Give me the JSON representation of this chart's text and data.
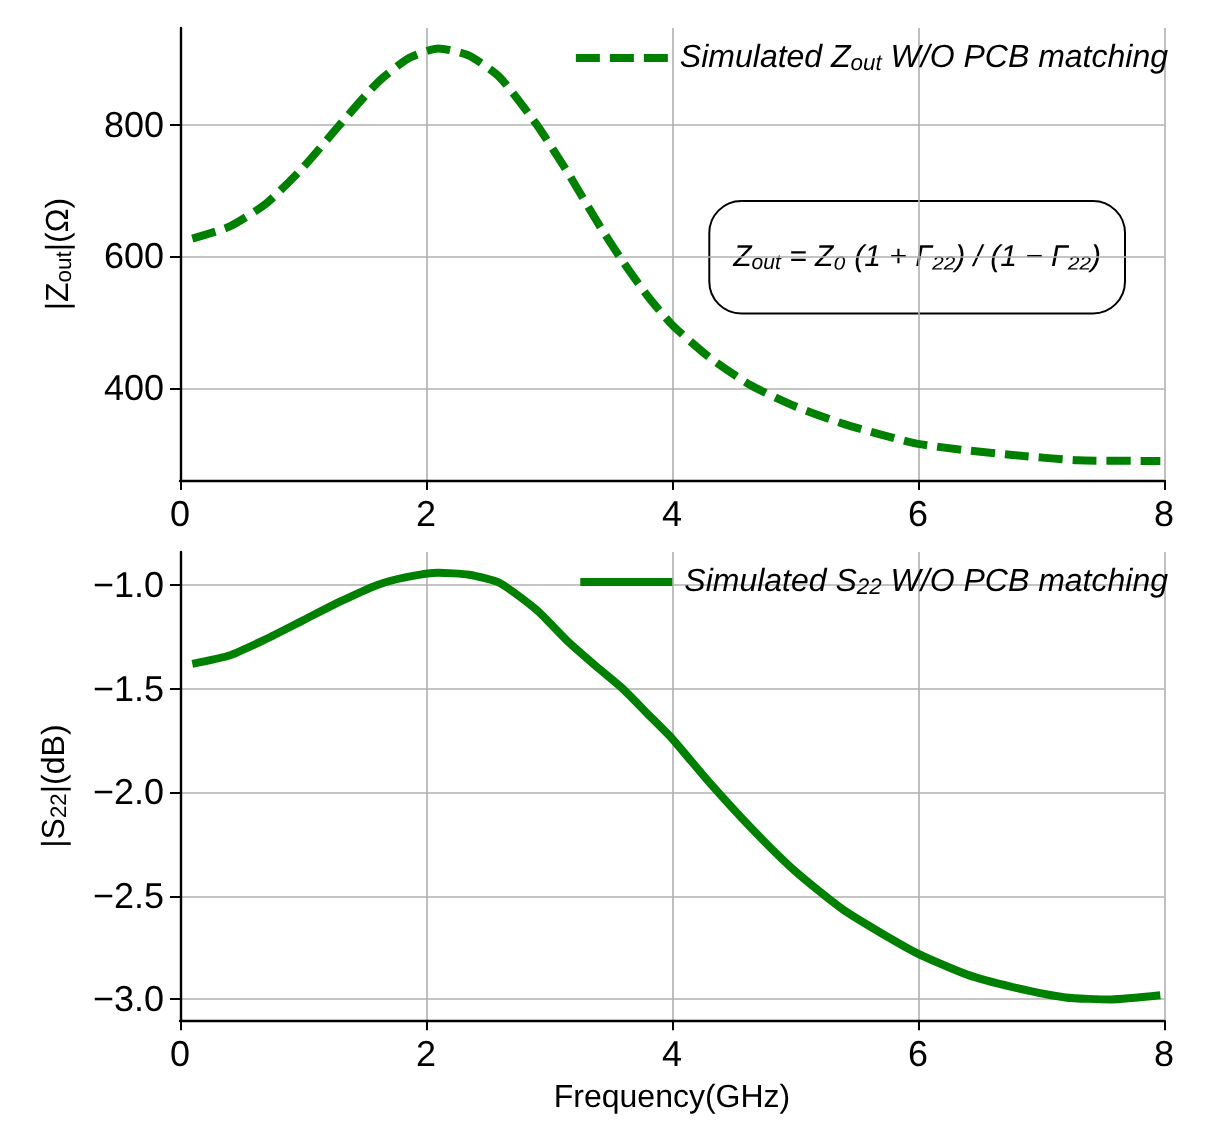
{
  "chart_data": [
    {
      "type": "line",
      "ylabel": "|Z$_{out}$|(Ω)",
      "xlim": [
        0,
        8
      ],
      "xticks": [
        0,
        2,
        4,
        6,
        8
      ],
      "ylim": [
        260,
        947
      ],
      "yticks": [
        400,
        600,
        800
      ],
      "grid": true,
      "legend": "top right",
      "marker": "none",
      "annotations": [
        "Z$_{out}$ = Z₀ (1 + Γ₂₂) / (1 − Γ₂₂)"
      ],
      "series": [
        {
          "name": "Simulated Z$_{out}$ W/O PCB matching",
          "color": "#008000",
          "line_style": "dashed",
          "x": [
            0.1,
            0.4,
            0.7,
            1.0,
            1.3,
            1.6,
            1.85,
            2.1,
            2.35,
            2.6,
            2.9,
            3.15,
            3.4,
            3.6,
            3.8,
            4.0,
            4.3,
            4.64,
            5.0,
            5.4,
            5.97,
            6.4,
            6.77,
            7.3,
            7.97
          ],
          "values": [
            627,
            645,
            680,
            735,
            800,
            863,
            900,
            916,
            905,
            872,
            800,
            728,
            650,
            592,
            540,
            496,
            447,
            404,
            372,
            345,
            316,
            305,
            298,
            290,
            289
          ]
        }
      ]
    },
    {
      "type": "line",
      "xlabel": "Frequency(GHz)",
      "ylabel": "|S$_{22}$|(dB)",
      "xlim": [
        0,
        8
      ],
      "xticks": [
        0,
        2,
        4,
        6,
        8
      ],
      "ylim": [
        -3.1,
        -0.84
      ],
      "yticks": [
        {
          "value": -3,
          "label": "−3.0"
        },
        {
          "value": -2.5,
          "label": "−2.5"
        },
        {
          "value": -2,
          "label": "−2.0"
        },
        {
          "value": -1.5,
          "label": "−1.5"
        },
        {
          "value": -1,
          "label": "−1.0"
        }
      ],
      "grid": true,
      "legend": "top right",
      "marker": "none",
      "series": [
        {
          "name": "Simulated S$_{22}$ W/O PCB matching",
          "color": "#008000",
          "line_style": "solid",
          "x": [
            0.1,
            0.4,
            0.7,
            1.0,
            1.3,
            1.6,
            1.85,
            2.1,
            2.35,
            2.6,
            2.9,
            3.15,
            3.4,
            3.6,
            3.8,
            4.0,
            4.3,
            4.64,
            5.0,
            5.4,
            5.97,
            6.4,
            6.77,
            7.2,
            7.57,
            7.97
          ],
          "values": [
            -1.38,
            -1.34,
            -1.26,
            -1.17,
            -1.08,
            -1.0,
            -0.96,
            -0.94,
            -0.95,
            -0.99,
            -1.12,
            -1.27,
            -1.4,
            -1.5,
            -1.62,
            -1.74,
            -1.95,
            -2.17,
            -2.38,
            -2.57,
            -2.77,
            -2.88,
            -2.94,
            -2.99,
            -3.0,
            -2.98
          ]
        }
      ]
    }
  ]
}
